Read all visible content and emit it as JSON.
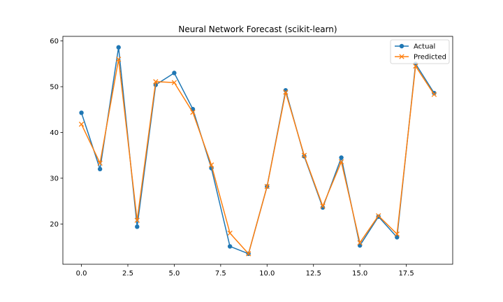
{
  "chart_data": {
    "type": "line",
    "title": "Neural Network Forecast (scikit-learn)",
    "xlabel": "",
    "ylabel": "",
    "xlim": [
      -1.0,
      20.0
    ],
    "ylim": [
      11.2,
      61.0
    ],
    "xticks": [
      0.0,
      2.5,
      5.0,
      7.5,
      10.0,
      12.5,
      15.0,
      17.5
    ],
    "xtick_labels": [
      "0.0",
      "2.5",
      "5.0",
      "7.5",
      "10.0",
      "12.5",
      "15.0",
      "17.5"
    ],
    "yticks": [
      20,
      30,
      40,
      50,
      60
    ],
    "ytick_labels": [
      "20",
      "30",
      "40",
      "50",
      "60"
    ],
    "grid": false,
    "legend_position": "top-right",
    "x": [
      0,
      1,
      2,
      3,
      4,
      5,
      6,
      7,
      8,
      9,
      10,
      11,
      12,
      13,
      14,
      15,
      16,
      17,
      18,
      19
    ],
    "series": [
      {
        "name": "Actual",
        "color": "#1f77b4",
        "marker": "circle",
        "values": [
          44.3,
          32.0,
          58.6,
          19.4,
          50.4,
          53.0,
          45.1,
          32.2,
          15.1,
          13.5,
          28.2,
          49.2,
          34.8,
          23.6,
          34.5,
          15.3,
          21.6,
          17.1,
          55.0,
          48.6
        ]
      },
      {
        "name": "Predicted",
        "color": "#ff7f0e",
        "marker": "x",
        "values": [
          41.8,
          33.3,
          56.0,
          20.8,
          51.1,
          50.9,
          44.4,
          32.9,
          18.0,
          13.5,
          28.2,
          48.8,
          35.0,
          23.9,
          33.6,
          15.9,
          21.8,
          17.8,
          54.5,
          48.3
        ]
      }
    ]
  }
}
